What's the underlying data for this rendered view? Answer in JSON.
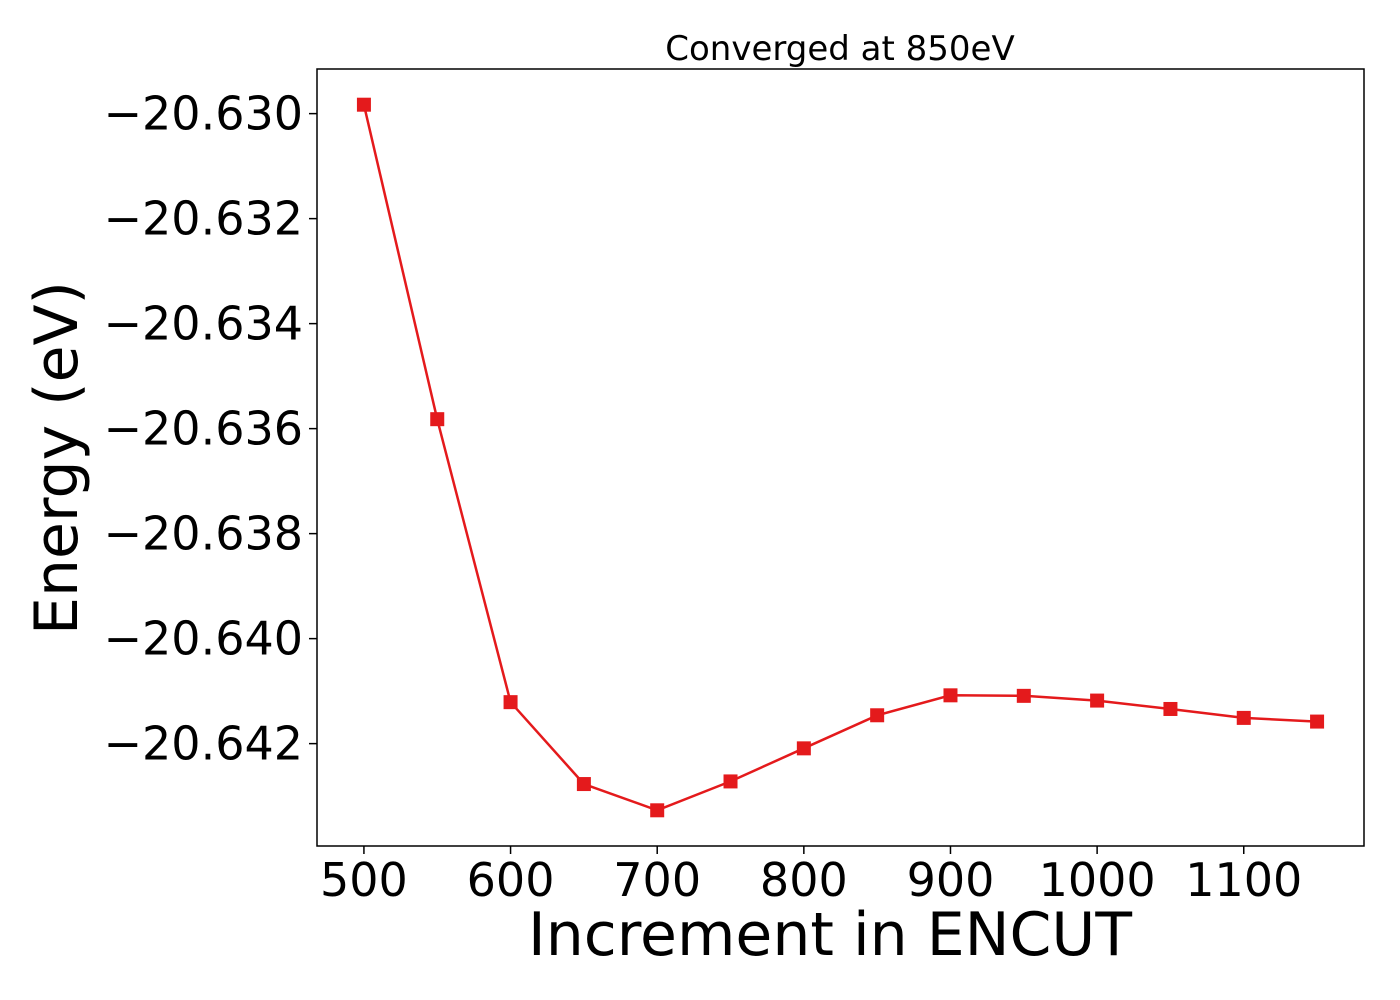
{
  "chart_data": {
    "type": "line",
    "title": "Converged at 850eV",
    "xlabel": "Increment in ENCUT",
    "ylabel": "Energy (eV)",
    "x": [
      500,
      550,
      600,
      650,
      700,
      750,
      800,
      850,
      900,
      950,
      1000,
      1050,
      1100,
      1150
    ],
    "series": [
      {
        "values": [
          -20.62983,
          -20.63582,
          -20.64121,
          -20.64277,
          -20.64327,
          -20.64272,
          -20.64209,
          -20.64146,
          -20.64108,
          -20.64109,
          -20.64118,
          -20.64134,
          -20.64151,
          -20.64158
        ],
        "color": "#e41a1c",
        "marker": "square"
      }
    ],
    "xticks": [
      500,
      600,
      700,
      800,
      900,
      1000,
      1100
    ],
    "xtick_labels": [
      "500",
      "600",
      "700",
      "800",
      "900",
      "1000",
      "1100"
    ],
    "yticks": [
      -20.63,
      -20.632,
      -20.634,
      -20.636,
      -20.638,
      -20.64,
      -20.642
    ],
    "ytick_labels": [
      "−20.630",
      "−20.632",
      "−20.634",
      "−20.636",
      "−20.638",
      "−20.640",
      "−20.642"
    ],
    "xlim": [
      468,
      1182
    ],
    "ylim": [
      -20.64395,
      -20.62915
    ],
    "grid": false,
    "legend": false
  }
}
